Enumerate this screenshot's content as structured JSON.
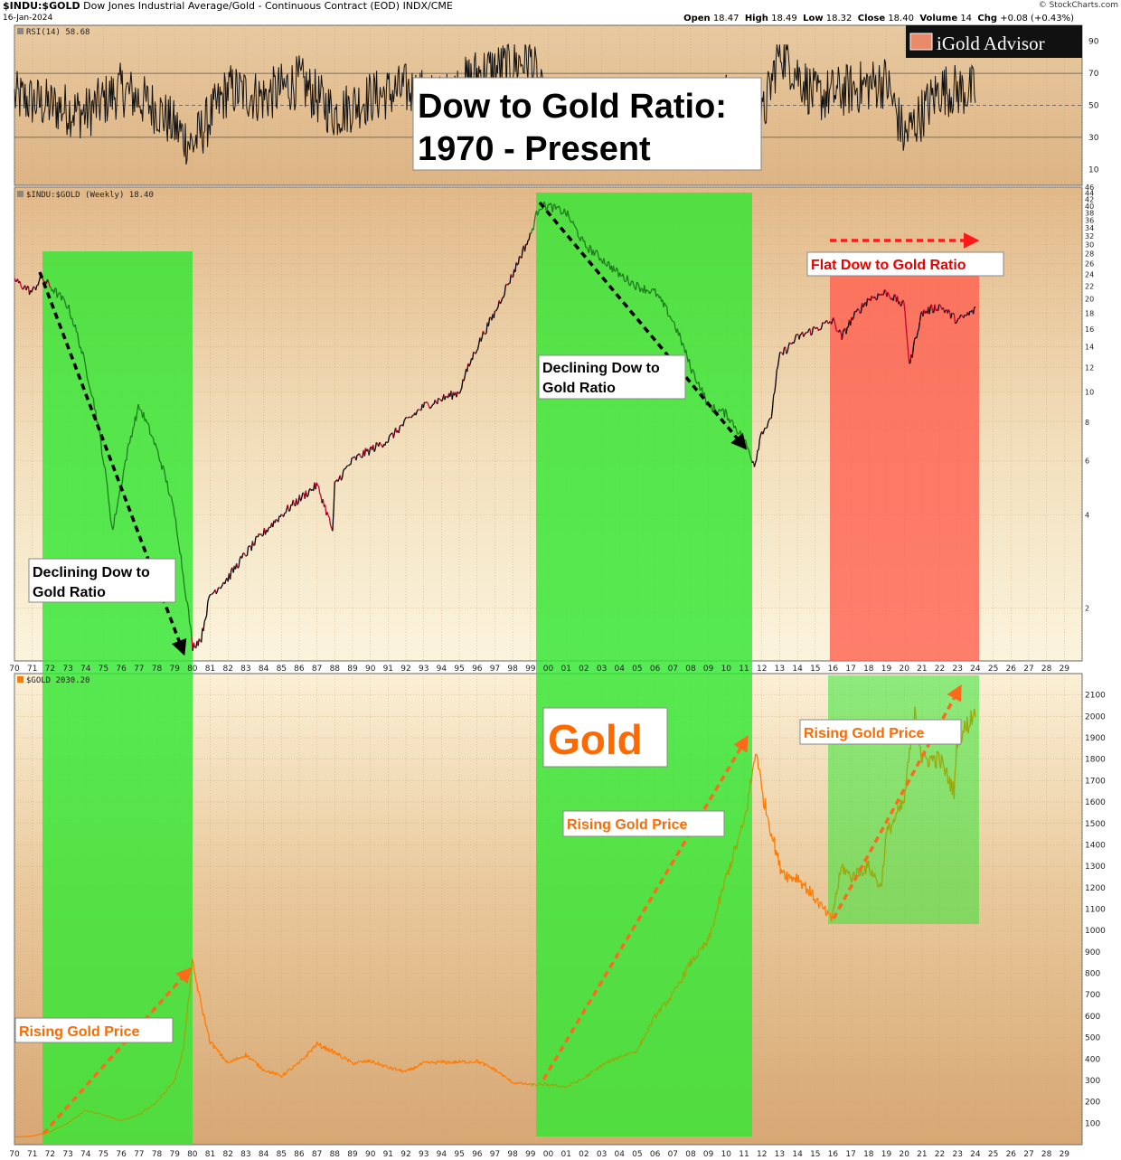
{
  "header": {
    "symbol": "$INDU:$GOLD",
    "description": "Dow Jones Industrial Average/Gold - Continuous Contract (EOD)",
    "exchange": "INDX/CME",
    "date": "16-Jan-2024",
    "open_label": "Open",
    "open": "18.47",
    "high_label": "High",
    "high": "18.49",
    "low_label": "Low",
    "low": "18.32",
    "close_label": "Close",
    "close": "18.40",
    "volume_label": "Volume",
    "volume": "14",
    "chg_label": "Chg",
    "chg": "+0.08 (+0.43%)",
    "watermark": "© StockCharts.com"
  },
  "logo": {
    "text": "iGold Advisor"
  },
  "title_box": {
    "line1": "Dow to Gold Ratio:",
    "line2": "1970 - Present"
  },
  "colors": {
    "green_zone": "#33e633",
    "red_zone": "#ff5c4d",
    "price_line": "#ff7a00",
    "ratio_up": "#000000",
    "ratio_down": "#cc0033",
    "arrow_black": "#000000",
    "arrow_orange": "#ff6a1a",
    "arrow_red": "#ff1a1a",
    "label_orange": "#ff6a00",
    "label_red": "#e60000"
  },
  "chart_data": [
    {
      "type": "line",
      "panel": "rsi",
      "legend": "RSI(14) 58.68",
      "ylim": [
        0,
        100
      ],
      "y_ticks": [
        10,
        30,
        50,
        70,
        90
      ],
      "reference_lines": [
        30,
        50,
        70
      ],
      "x": [
        1970,
        1972,
        1974,
        1976,
        1978,
        1980,
        1982,
        1984,
        1986,
        1988,
        1990,
        1992,
        1994,
        1996,
        1998,
        1999,
        2000,
        2002,
        2004,
        2006,
        2008,
        2010,
        2012,
        2013,
        2015,
        2017,
        2019,
        2020,
        2022,
        2024
      ],
      "values": [
        55,
        50,
        45,
        60,
        48,
        25,
        60,
        55,
        65,
        45,
        55,
        60,
        52,
        70,
        75,
        80,
        40,
        45,
        50,
        55,
        48,
        55,
        40,
        85,
        55,
        60,
        65,
        30,
        60,
        58.68
      ]
    },
    {
      "type": "line",
      "panel": "ratio",
      "legend": "$INDU:$GOLD (Weekly) 18.40",
      "y_scale": "log",
      "ylim": [
        1.35,
        46
      ],
      "y_ticks": [
        2,
        4,
        6,
        8,
        10,
        12,
        14,
        16,
        18,
        20,
        22,
        24,
        26,
        28,
        30,
        32,
        34,
        36,
        38,
        40,
        42,
        44,
        46
      ],
      "x": [
        1970,
        1971,
        1971.5,
        1972,
        1973,
        1974,
        1975,
        1975.5,
        1976,
        1976.5,
        1977,
        1978,
        1979,
        1979.5,
        1980,
        1980.5,
        1981,
        1982,
        1983,
        1984,
        1985,
        1986,
        1987,
        1987.9,
        1988,
        1989,
        1990,
        1991,
        1992,
        1993,
        1994,
        1995,
        1996,
        1997,
        1998,
        1999,
        1999.5,
        2000,
        2001,
        2002,
        2003,
        2004,
        2005,
        2006,
        2007,
        2008,
        2009,
        2010,
        2011,
        2011.6,
        2012,
        2012.5,
        2013,
        2014,
        2015,
        2016,
        2016.5,
        2017,
        2018,
        2019,
        2020,
        2020.3,
        2021,
        2022,
        2023,
        2024
      ],
      "values": [
        23,
        21,
        23.5,
        22,
        19,
        12,
        6,
        3.5,
        5,
        7,
        9,
        6.5,
        4,
        2.5,
        1.5,
        1.6,
        2.2,
        2.5,
        3,
        3.5,
        4,
        4.5,
        5,
        3.5,
        5,
        6,
        6.5,
        7,
        8,
        9,
        9.5,
        10,
        14,
        18,
        24,
        32,
        40,
        40,
        38,
        30,
        27,
        24,
        22,
        21,
        17,
        12,
        9,
        8.5,
        7,
        5.8,
        7.5,
        8,
        13,
        15,
        16,
        17,
        15,
        17,
        20,
        21,
        19,
        12,
        18,
        19,
        17,
        18.4
      ]
    },
    {
      "type": "line",
      "panel": "gold",
      "legend": "$GOLD 2030.20",
      "ylim": [
        0,
        2200
      ],
      "y_ticks": [
        100,
        200,
        300,
        400,
        500,
        600,
        700,
        800,
        900,
        1000,
        1100,
        1200,
        1300,
        1400,
        1500,
        1600,
        1700,
        1800,
        1900,
        2000,
        2100
      ],
      "x": [
        1970,
        1971,
        1972,
        1973,
        1974,
        1975,
        1976,
        1977,
        1978,
        1979,
        1979.5,
        1980,
        1980.5,
        1981,
        1982,
        1983,
        1984,
        1985,
        1986,
        1987,
        1988,
        1989,
        1990,
        1991,
        1992,
        1993,
        1994,
        1995,
        1996,
        1997,
        1998,
        1999,
        2000,
        2001,
        2002,
        2003,
        2004,
        2005,
        2006,
        2007,
        2008,
        2009,
        2010,
        2011,
        2011.7,
        2012,
        2013,
        2013.5,
        2014,
        2015,
        2015.9,
        2016.5,
        2017,
        2018,
        2018.7,
        2019,
        2020,
        2020.6,
        2021,
        2022,
        2022.8,
        2023,
        2023.5,
        2024
      ],
      "values": [
        35,
        40,
        60,
        100,
        160,
        140,
        110,
        140,
        200,
        300,
        450,
        850,
        650,
        480,
        380,
        420,
        350,
        320,
        380,
        470,
        430,
        380,
        390,
        360,
        340,
        380,
        385,
        385,
        390,
        350,
        290,
        280,
        280,
        270,
        310,
        370,
        410,
        440,
        600,
        700,
        850,
        950,
        1250,
        1500,
        1850,
        1650,
        1300,
        1250,
        1250,
        1150,
        1050,
        1300,
        1250,
        1300,
        1200,
        1450,
        1600,
        2050,
        1800,
        1800,
        1650,
        1900,
        1950,
        2030.2
      ]
    }
  ],
  "x_axis": {
    "labels": [
      "70",
      "71",
      "72",
      "73",
      "74",
      "75",
      "76",
      "77",
      "78",
      "79",
      "80",
      "81",
      "82",
      "83",
      "84",
      "85",
      "86",
      "87",
      "88",
      "89",
      "90",
      "91",
      "92",
      "93",
      "94",
      "95",
      "96",
      "97",
      "98",
      "99",
      "00",
      "01",
      "02",
      "03",
      "04",
      "05",
      "06",
      "07",
      "08",
      "09",
      "10",
      "11",
      "12",
      "13",
      "14",
      "15",
      "16",
      "17",
      "18",
      "19",
      "20",
      "21",
      "22",
      "23",
      "24",
      "25",
      "26",
      "27",
      "28",
      "29"
    ]
  },
  "zones": [
    {
      "name": "green-1972-1980"
    },
    {
      "name": "green-1999-2011"
    },
    {
      "name": "red-2016-2024"
    },
    {
      "name": "green-2016-2024"
    }
  ],
  "annotations": {
    "declining_1": {
      "line1": "Declining Dow to",
      "line2": "Gold Ratio"
    },
    "declining_2": {
      "line1": "Declining Dow to",
      "line2": "Gold Ratio"
    },
    "flat": "Flat Dow to Gold Ratio",
    "gold": "Gold",
    "rising_1": "Rising Gold Price",
    "rising_2": "Rising Gold Price",
    "rising_3": "Rising Gold Price"
  }
}
